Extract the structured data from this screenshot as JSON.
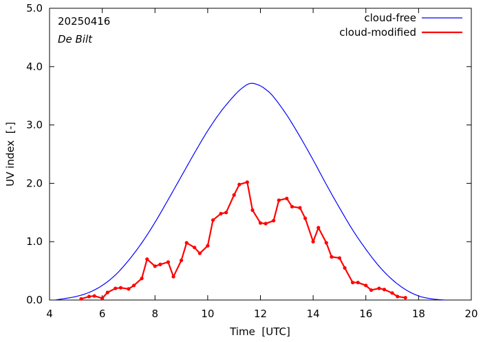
{
  "chart_data": {
    "type": "line",
    "title": "",
    "xlabel": "Time  [UTC]",
    "ylabel": "UV index  [-]",
    "xlim": [
      4,
      20
    ],
    "ylim": [
      0,
      5
    ],
    "xticks": [
      4,
      6,
      8,
      10,
      12,
      14,
      16,
      18,
      20
    ],
    "xtick_labels": [
      "4",
      "6",
      "8",
      "10",
      "12",
      "14",
      "16",
      "18",
      "20"
    ],
    "yticks": [
      0,
      1,
      2,
      3,
      4,
      5
    ],
    "ytick_labels": [
      "0.0",
      "1.0",
      "2.0",
      "3.0",
      "4.0",
      "5.0"
    ],
    "grid": false,
    "legend_position": "top-right",
    "annotations": {
      "date": "20250416",
      "station": "De Bilt"
    },
    "series": [
      {
        "name": "cloud-free",
        "color": "#0000ff",
        "style": "line",
        "x": [
          4.2,
          4.5,
          5,
          5.5,
          6,
          6.5,
          7,
          7.5,
          8,
          8.5,
          9,
          9.5,
          10,
          10.5,
          11,
          11.3,
          11.6,
          11.9,
          12.2,
          12.5,
          13,
          13.5,
          14,
          14.5,
          15,
          15.5,
          16,
          16.5,
          17,
          17.5,
          18,
          18.5,
          19
        ],
        "y": [
          0.0,
          0.02,
          0.06,
          0.13,
          0.25,
          0.43,
          0.68,
          0.98,
          1.33,
          1.72,
          2.12,
          2.52,
          2.9,
          3.23,
          3.5,
          3.63,
          3.71,
          3.69,
          3.61,
          3.48,
          3.17,
          2.8,
          2.4,
          1.98,
          1.58,
          1.2,
          0.87,
          0.58,
          0.35,
          0.18,
          0.07,
          0.02,
          0.0
        ]
      },
      {
        "name": "cloud-modified",
        "color": "#ff0000",
        "style": "line-points",
        "x": [
          5.2,
          5.5,
          5.7,
          6.0,
          6.2,
          6.5,
          6.7,
          7.0,
          7.2,
          7.5,
          7.7,
          8.0,
          8.2,
          8.5,
          8.7,
          9.0,
          9.2,
          9.5,
          9.7,
          10.0,
          10.2,
          10.5,
          10.7,
          11.0,
          11.2,
          11.5,
          11.7,
          12.0,
          12.2,
          12.5,
          12.7,
          13.0,
          13.2,
          13.5,
          13.7,
          14.0,
          14.2,
          14.5,
          14.7,
          15.0,
          15.2,
          15.5,
          15.7,
          16.0,
          16.2,
          16.5,
          16.7,
          17.0,
          17.2,
          17.5
        ],
        "y": [
          0.02,
          0.06,
          0.07,
          0.03,
          0.13,
          0.2,
          0.21,
          0.19,
          0.25,
          0.37,
          0.7,
          0.58,
          0.61,
          0.65,
          0.4,
          0.68,
          0.98,
          0.9,
          0.8,
          0.93,
          1.37,
          1.48,
          1.5,
          1.8,
          1.98,
          2.02,
          1.54,
          1.32,
          1.31,
          1.36,
          1.71,
          1.74,
          1.6,
          1.58,
          1.4,
          1.0,
          1.24,
          0.98,
          0.74,
          0.72,
          0.55,
          0.3,
          0.3,
          0.25,
          0.17,
          0.2,
          0.18,
          0.12,
          0.06,
          0.04
        ]
      }
    ]
  }
}
